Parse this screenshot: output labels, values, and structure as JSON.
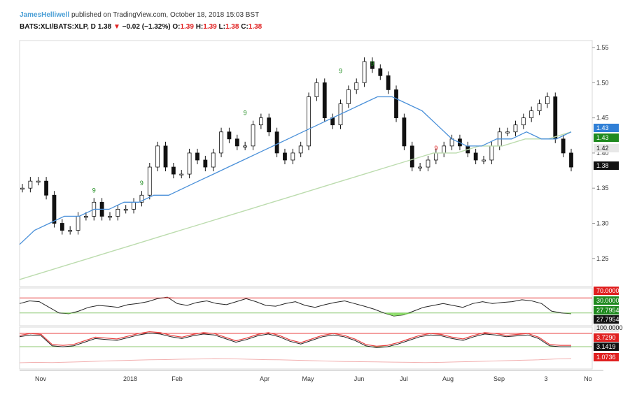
{
  "header": {
    "author": "JamesHelliwell",
    "published_text": "published on TradingView.com, October 18, 2018 15:03 BST",
    "symbol": "BATS:XLI/BATS:XLP, D",
    "last": "1.38",
    "arrow": "▼",
    "change": "−0.02 (−1.32%)",
    "o_label": "O:",
    "o_val": "1.39",
    "h_label": "H:",
    "h_val": "1.39",
    "l_label": "L:",
    "l_val": "1.38",
    "c_label": "C:",
    "c_val": "1.38"
  },
  "colors": {
    "ma_short": "#4a90d9",
    "ma_long": "#bcdcae",
    "rsi_line": "#222222",
    "overbought": "#e84040",
    "oversold_fill": "#7ed957",
    "stoch_red": "#e84040",
    "pink_line": "#f2b0b0",
    "tag_blue": "#2f7fd6",
    "tag_green": "#1f8a1f",
    "tag_red": "#e02020",
    "tag_dark": "#111111",
    "tag_grey": "#e8e8e8",
    "nine_green": "#1a8a1a",
    "nine_red": "#e02020"
  },
  "chart_data": {
    "type": "candlestick",
    "x_tick_labels": [
      "Nov",
      "2018",
      "Feb",
      "Apr",
      "May",
      "Jun",
      "Jul",
      "Aug",
      "Sep",
      "3",
      "No"
    ],
    "price_axis": {
      "ylim": [
        1.21,
        1.56
      ],
      "ticks": [
        "1.55",
        "1.50",
        "1.45",
        "1.40",
        "1.35",
        "1.30",
        "1.25"
      ]
    },
    "price_close": [
      1.35,
      1.36,
      1.36,
      1.34,
      1.3,
      1.29,
      1.29,
      1.31,
      1.31,
      1.33,
      1.31,
      1.31,
      1.32,
      1.32,
      1.33,
      1.34,
      1.38,
      1.41,
      1.38,
      1.37,
      1.37,
      1.4,
      1.39,
      1.38,
      1.4,
      1.43,
      1.42,
      1.41,
      1.41,
      1.44,
      1.45,
      1.43,
      1.4,
      1.39,
      1.4,
      1.41,
      1.48,
      1.5,
      1.45,
      1.44,
      1.47,
      1.49,
      1.5,
      1.53,
      1.52,
      1.51,
      1.49,
      1.45,
      1.41,
      1.38,
      1.38,
      1.39,
      1.4,
      1.41,
      1.42,
      1.41,
      1.4,
      1.39,
      1.39,
      1.41,
      1.43,
      1.43,
      1.44,
      1.45,
      1.46,
      1.47,
      1.48,
      1.42,
      1.4,
      1.38
    ],
    "ma_short": [
      1.27,
      1.29,
      1.3,
      1.31,
      1.31,
      1.32,
      1.32,
      1.33,
      1.33,
      1.34,
      1.34,
      1.35,
      1.36,
      1.37,
      1.38,
      1.39,
      1.4,
      1.41,
      1.42,
      1.43,
      1.44,
      1.45,
      1.46,
      1.47,
      1.48,
      1.48,
      1.47,
      1.46,
      1.44,
      1.42,
      1.41,
      1.41,
      1.42,
      1.42,
      1.43,
      1.42,
      1.42,
      1.43
    ],
    "ma_long": [
      1.22,
      1.23,
      1.24,
      1.25,
      1.26,
      1.27,
      1.28,
      1.29,
      1.3,
      1.31,
      1.32,
      1.33,
      1.34,
      1.35,
      1.36,
      1.37,
      1.38,
      1.39,
      1.4,
      1.4,
      1.41,
      1.41,
      1.42,
      1.42,
      1.43
    ],
    "nine_marks": [
      {
        "label": "9",
        "color": "green",
        "x_index": 9,
        "value": 1.34
      },
      {
        "label": "9",
        "color": "green",
        "x_index": 15,
        "value": 1.35
      },
      {
        "label": "9",
        "color": "green",
        "x_index": 28,
        "value": 1.45
      },
      {
        "label": "9",
        "color": "green",
        "x_index": 40,
        "value": 1.51
      },
      {
        "label": "9",
        "color": "green",
        "x_index": 44,
        "value": 1.52
      },
      {
        "label": "9",
        "color": "red",
        "x_index": 52,
        "value": 1.4
      }
    ],
    "price_tags": [
      {
        "text": "1.43",
        "style": "blue"
      },
      {
        "text": "1.43",
        "style": "green"
      },
      {
        "text": "1.42",
        "style": "grey"
      },
      {
        "text": "1.38",
        "style": "dark"
      }
    ],
    "rsi": {
      "tags": [
        {
          "text": "70.0000",
          "style": "red"
        },
        {
          "text": "30.0000",
          "style": "green"
        },
        {
          "text": "27.7954",
          "style": "green"
        },
        {
          "text": "27.7954",
          "style": "dark"
        }
      ],
      "upper": 70,
      "lower": 30,
      "values": [
        55,
        62,
        60,
        45,
        30,
        28,
        35,
        45,
        50,
        48,
        45,
        52,
        55,
        60,
        68,
        72,
        55,
        50,
        58,
        62,
        55,
        52,
        60,
        68,
        60,
        50,
        48,
        55,
        60,
        50,
        45,
        52,
        58,
        62,
        55,
        48,
        40,
        30,
        22,
        25,
        35,
        45,
        50,
        55,
        50,
        45,
        55,
        60,
        55,
        58,
        60,
        65,
        62,
        55,
        35,
        30,
        28
      ]
    },
    "stoch": {
      "tags": [
        {
          "text": "100.0000",
          "style": "grey"
        },
        {
          "text": "3.7290",
          "style": "red"
        },
        {
          "text": "3.1419",
          "style": "dark"
        },
        {
          "text": "1.0736",
          "style": "red"
        }
      ],
      "values": [
        70,
        80,
        75,
        20,
        15,
        20,
        40,
        60,
        55,
        50,
        65,
        80,
        90,
        85,
        70,
        60,
        75,
        85,
        80,
        60,
        40,
        55,
        75,
        85,
        70,
        45,
        30,
        50,
        70,
        80,
        70,
        50,
        20,
        10,
        15,
        30,
        50,
        70,
        80,
        75,
        60,
        50,
        70,
        85,
        80,
        70,
        75,
        80,
        60,
        20,
        15,
        15
      ],
      "pink_values": [
        10,
        12,
        11,
        13,
        15,
        18,
        20,
        22,
        24,
        25,
        27,
        28,
        30,
        29,
        27,
        25,
        24,
        22,
        20,
        18,
        16,
        15,
        14,
        13,
        12,
        11,
        12,
        14,
        16,
        18,
        20,
        22,
        24,
        28,
        30
      ]
    }
  }
}
